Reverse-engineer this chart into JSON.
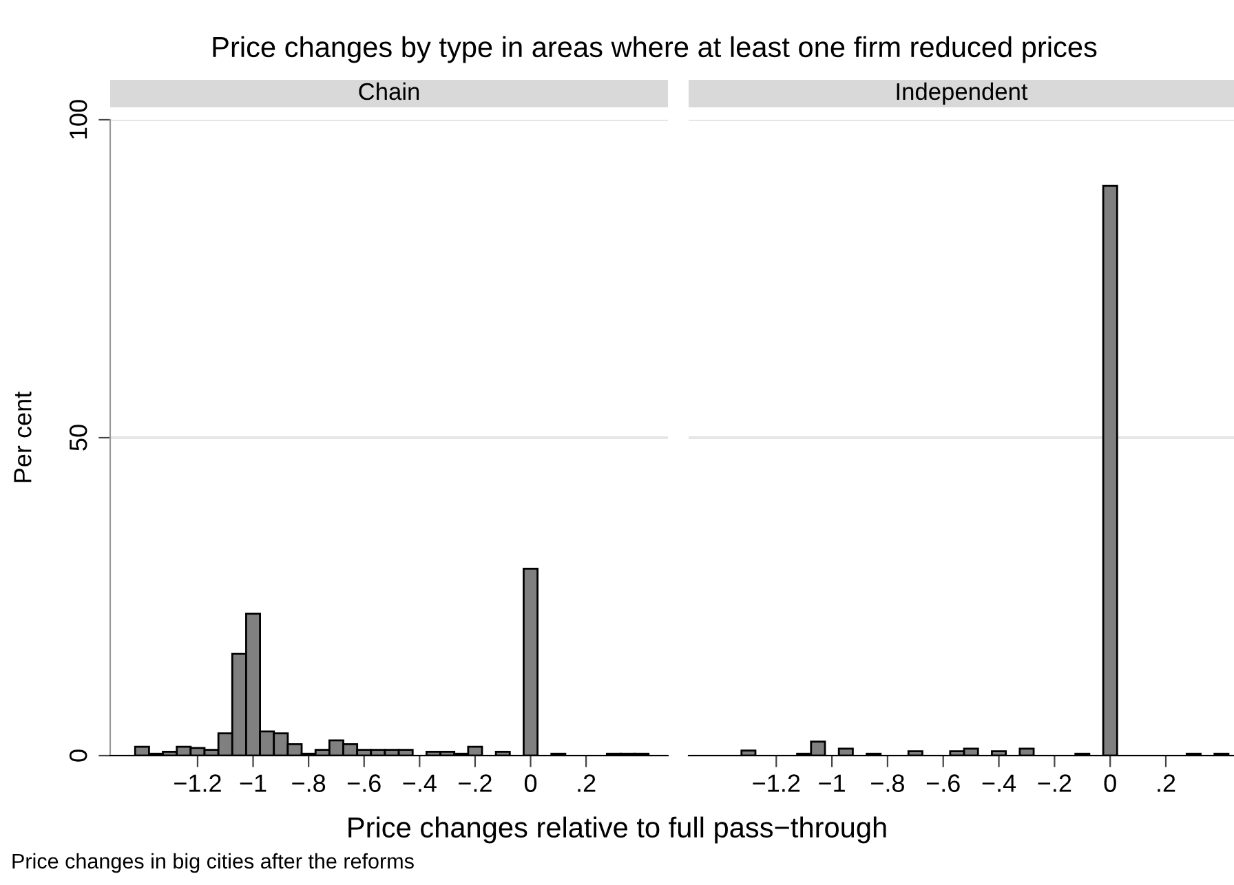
{
  "chart_data": [
    {
      "type": "histogram",
      "title": "Chain",
      "xlabel": "Price changes relative to full pass−through",
      "ylabel": "Per cent",
      "annotations": [
        "Price changes by type in areas where at least one firm reduced prices",
        "Price changes in big cities after the reforms"
      ],
      "bins": [
        -1.425,
        -1.375,
        -1.325,
        -1.275,
        -1.225,
        -1.175,
        -1.125,
        -1.075,
        -1.025,
        -0.975,
        -0.925,
        -0.875,
        -0.825,
        -0.775,
        -0.725,
        -0.675,
        -0.625,
        -0.575,
        -0.525,
        -0.475,
        -0.425,
        -0.375,
        -0.325,
        -0.275,
        -0.225,
        -0.175,
        -0.125,
        -0.075,
        -0.025,
        0.025,
        0.075,
        0.125,
        0.175,
        0.225,
        0.275,
        0.325,
        0.375,
        0.425
      ],
      "values": [
        1.4,
        0.3,
        0.6,
        1.4,
        1.2,
        0.9,
        3.5,
        16.0,
        22.3,
        3.8,
        3.5,
        1.8,
        0.3,
        0.9,
        2.4,
        1.8,
        0.9,
        0.9,
        0.9,
        0.9,
        0,
        0.6,
        0.6,
        0.3,
        1.4,
        0,
        0.6,
        0,
        29.4,
        0,
        0.3,
        0,
        0,
        0,
        0.3,
        0.3,
        0.3
      ],
      "color": "#808080",
      "xlim": [
        -1.515,
        0.495
      ],
      "ylim": [
        0,
        100
      ],
      "xticks": [
        {
          "value": -1.2,
          "label": "−1.2"
        },
        {
          "value": -1,
          "label": "−1"
        },
        {
          "value": -0.8,
          "label": "−.8"
        },
        {
          "value": -0.6,
          "label": "−.6"
        },
        {
          "value": -0.4,
          "label": "−.4"
        },
        {
          "value": -0.2,
          "label": "−.2"
        },
        0,
        {
          "value": 0.2,
          "label": ".2"
        }
      ],
      "yticks": [
        0,
        50,
        100
      ],
      "grid": "y"
    },
    {
      "type": "histogram",
      "title": "Independent",
      "bins": [
        -1.425,
        -1.375,
        -1.325,
        -1.275,
        -1.225,
        -1.175,
        -1.125,
        -1.075,
        -1.025,
        -0.975,
        -0.925,
        -0.875,
        -0.825,
        -0.775,
        -0.725,
        -0.675,
        -0.625,
        -0.575,
        -0.525,
        -0.475,
        -0.425,
        -0.375,
        -0.325,
        -0.275,
        -0.225,
        -0.175,
        -0.125,
        -0.075,
        -0.025,
        0.025,
        0.075,
        0.125,
        0.175,
        0.225,
        0.275,
        0.325,
        0.375,
        0.425
      ],
      "values": [
        0,
        0,
        0.8,
        0,
        0,
        0,
        0.3,
        2.2,
        0,
        1.1,
        0,
        0.3,
        0,
        0,
        0.7,
        0,
        0,
        0.7,
        1.1,
        0,
        0.7,
        0,
        1.1,
        0,
        0,
        0,
        0.3,
        0,
        89.6,
        0,
        0,
        0,
        0,
        0,
        0.3,
        0,
        0.3
      ],
      "color": "#808080",
      "xlim": [
        -1.515,
        0.445
      ],
      "ylim": [
        0,
        100
      ],
      "xticks": [
        {
          "value": -1.2,
          "label": "−1.2"
        },
        {
          "value": -1,
          "label": "−1"
        },
        {
          "value": -0.8,
          "label": "−.8"
        },
        {
          "value": -0.6,
          "label": "−.6"
        },
        {
          "value": -0.4,
          "label": "−.4"
        },
        {
          "value": -0.2,
          "label": "−.2"
        },
        0,
        {
          "value": 0.2,
          "label": ".2"
        }
      ],
      "yticks": [
        0,
        50,
        100
      ],
      "grid": "y",
      "tick_labels": "x"
    }
  ]
}
